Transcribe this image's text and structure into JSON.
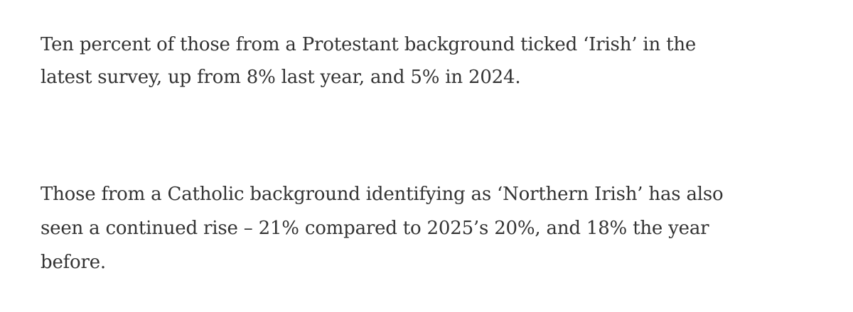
{
  "paragraphs": [
    {
      "lines": [
        "Ten percent of those from a Protestant background ticked ‘Irish’ in the",
        "latest survey, up from 8% last year, and 5% in 2024."
      ]
    },
    {
      "lines": [
        "Those from a Catholic background identifying as ‘Northern Irish’ has also",
        "seen a continued rise – 21% compared to 2025’s 20%, and 18% the year",
        "before."
      ]
    }
  ]
}
